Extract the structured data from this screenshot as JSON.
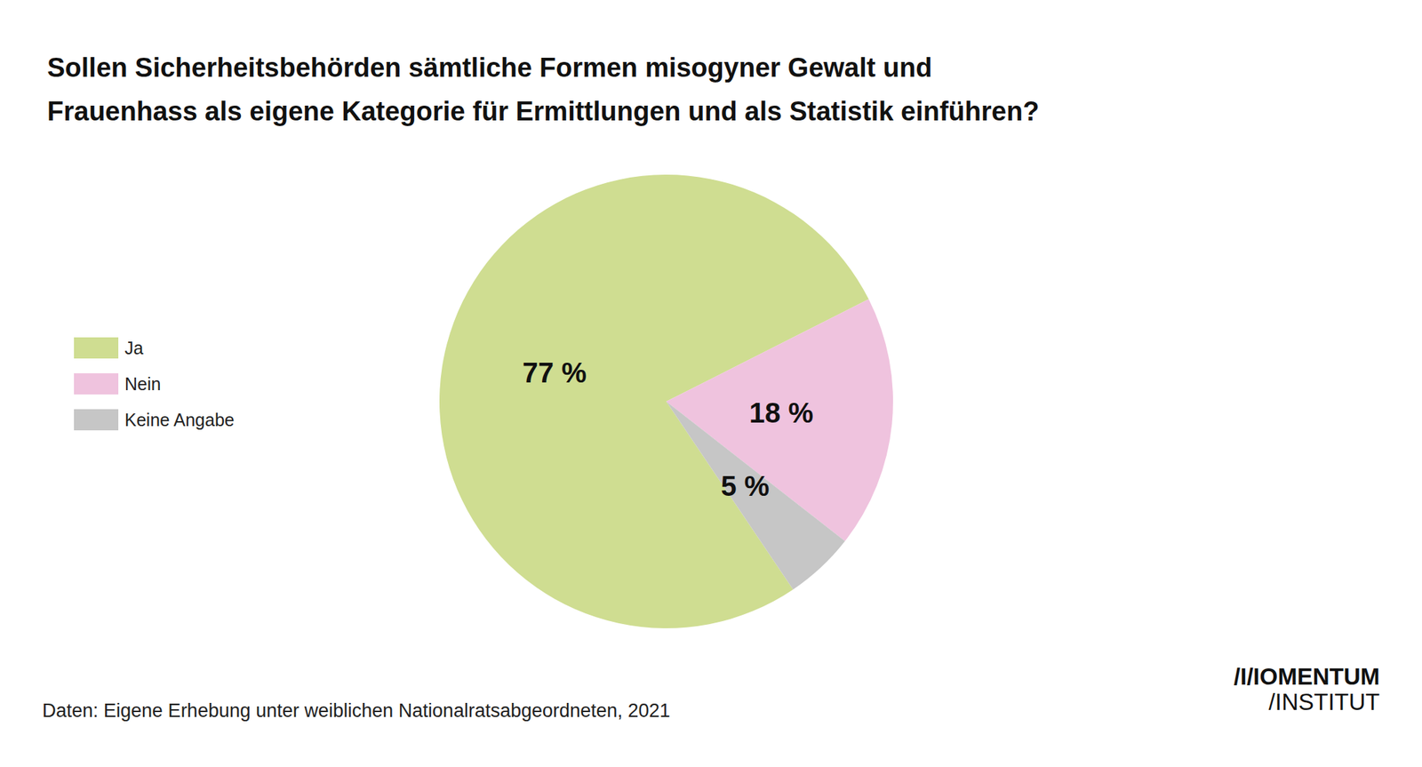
{
  "chart_data": {
    "type": "pie",
    "title": "Sollen Sicherheitsbehörden sämtliche Formen misogyner Gewalt und\nFrauenhass als eigene Kategorie für Ermittlungen und als Statistik einführen?",
    "categories": [
      "Ja",
      "Nein",
      "Keine Angabe"
    ],
    "values": [
      77,
      18,
      5
    ],
    "value_labels": [
      "77 %",
      "18 %",
      "5 %"
    ],
    "colors": [
      "#cfdd91",
      "#efc3de",
      "#c6c6c6"
    ],
    "data_labels": true,
    "legend": "left",
    "source": "Daten: Eigene Erhebung unter weiblichen Nationalratsabgeordneten, 2021",
    "logo": [
      "/I/IOMENTUM",
      "/INSTITUT"
    ]
  }
}
